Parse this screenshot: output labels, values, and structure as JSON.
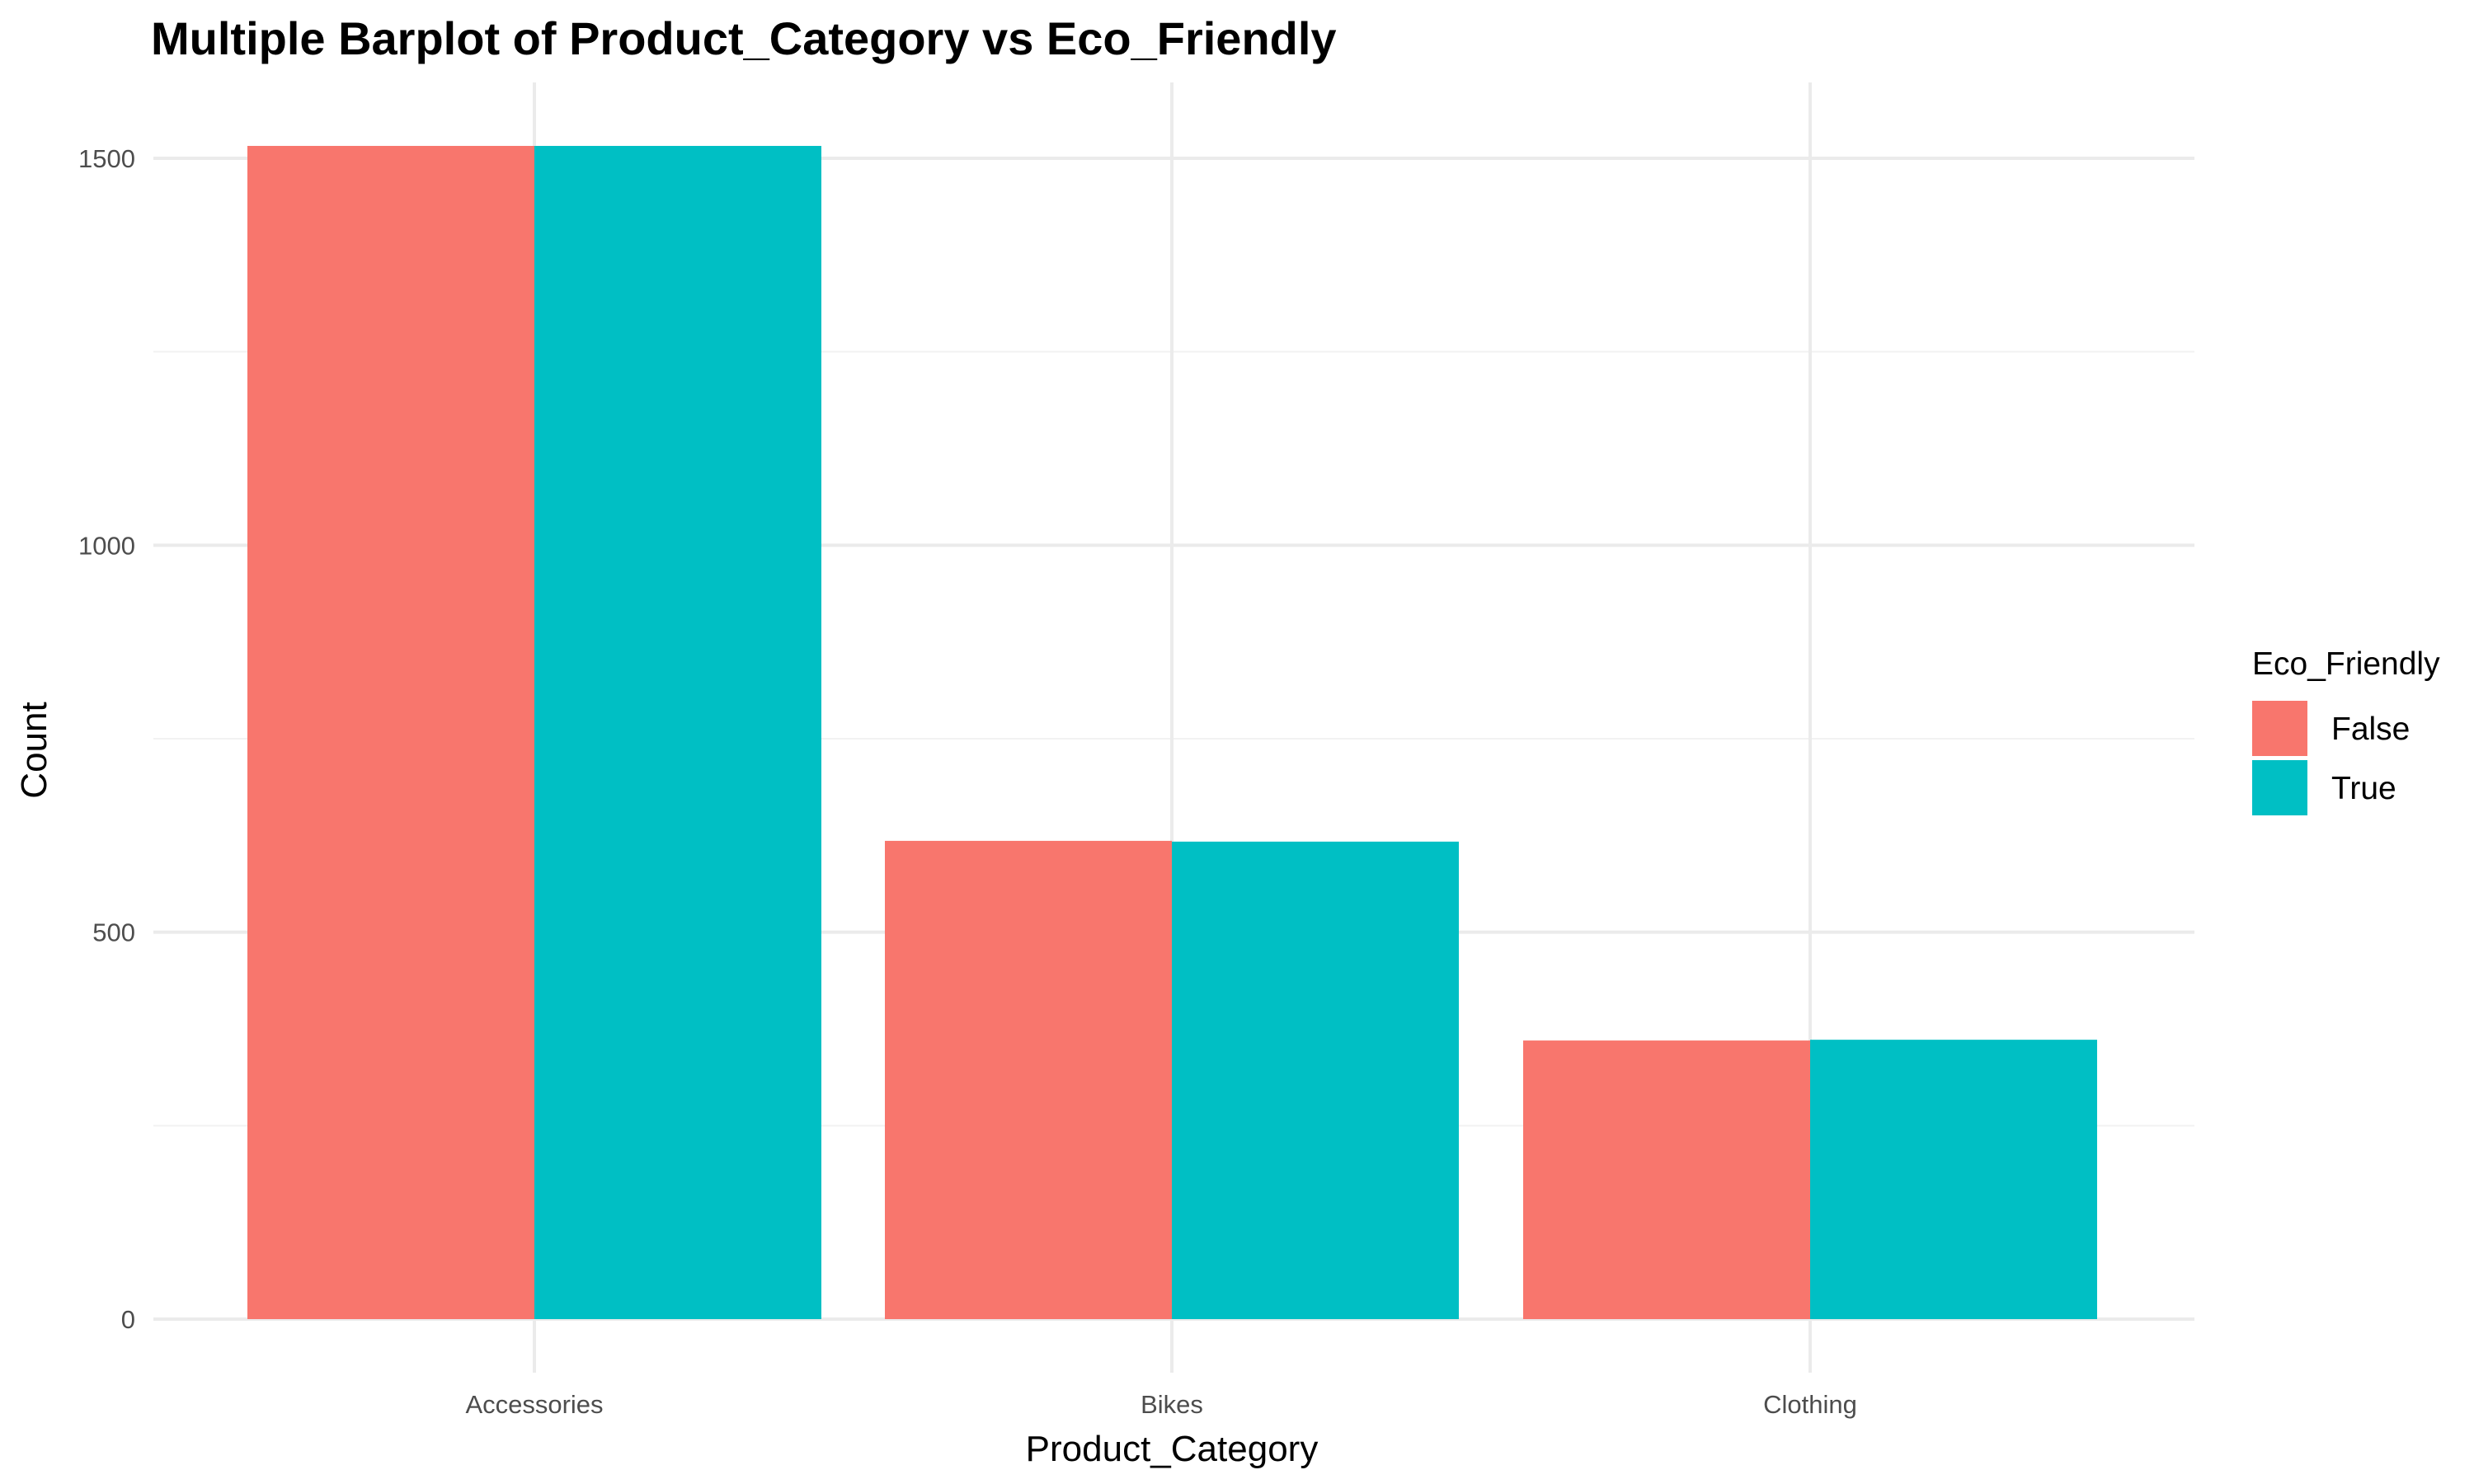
{
  "chart_data": {
    "type": "bar",
    "title": "Multiple Barplot of Product_Category vs Eco_Friendly",
    "xlabel": "Product_Category",
    "ylabel": "Count",
    "categories": [
      "Accessories",
      "Bikes",
      "Clothing"
    ],
    "series": [
      {
        "name": "False",
        "color": "#F8766D",
        "values": [
          1516,
          618,
          360
        ]
      },
      {
        "name": "True",
        "color": "#00BFC4",
        "values": [
          1516,
          617,
          361
        ]
      }
    ],
    "ylim": [
      0,
      1600
    ],
    "yticks": [
      0,
      500,
      1000,
      1500
    ],
    "ytick_labels": [
      "0",
      "500",
      "1000",
      "1500"
    ],
    "grid": true,
    "legend": {
      "title": "Eco_Friendly",
      "position": "right",
      "entries": [
        "False",
        "True"
      ]
    }
  }
}
